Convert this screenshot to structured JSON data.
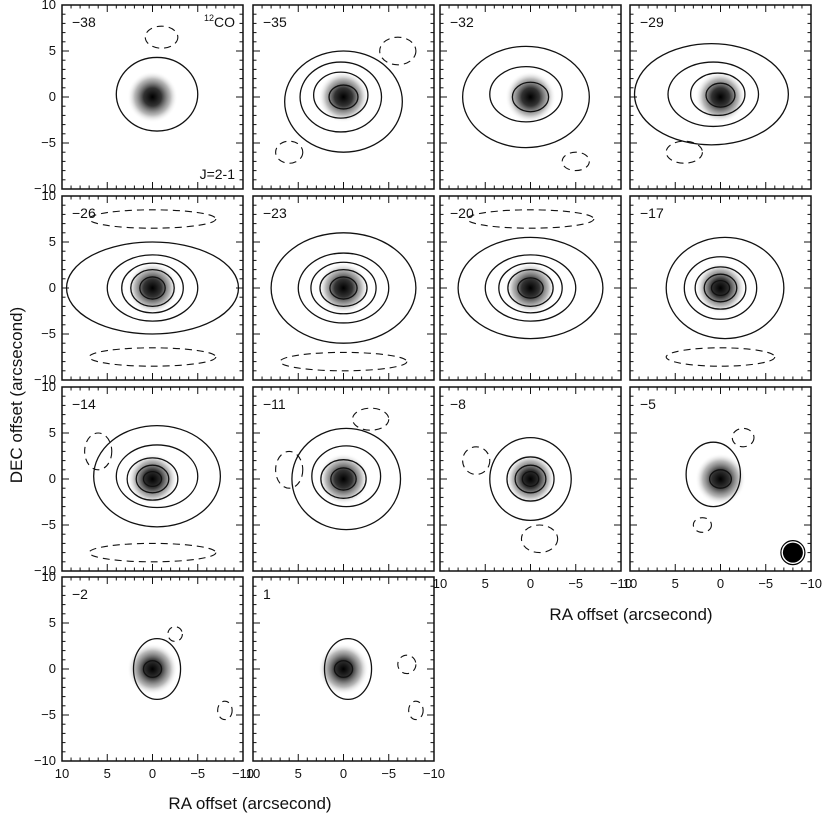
{
  "chart_data": {
    "type": "contour",
    "molecule": "12CO",
    "transition": "J=2-1",
    "xlabel": "RA offset (arcsecond)",
    "ylabel": "DEC offset (arcsecond)",
    "xlim": [
      10,
      -10
    ],
    "ylim": [
      -10,
      10
    ],
    "x_ticks": [
      10,
      5,
      0,
      -5,
      -10
    ],
    "y_ticks": [
      -10,
      -5,
      0,
      5,
      10
    ],
    "x_tick_labels": [
      "10",
      "5",
      "0",
      "−5",
      "−10"
    ],
    "y_tick_labels": [
      "−10",
      "−5",
      "0",
      "5",
      "10"
    ],
    "panels": [
      {
        "velocity_label": "−38",
        "peak": [
          0,
          0
        ],
        "levels": [
          {
            "rx": 4.5,
            "ry": 4,
            "dx": -0.5,
            "dy": 0.3
          }
        ],
        "neg": [
          {
            "x": -1,
            "y": 6.5,
            "rx": 1.8,
            "ry": 1.2
          }
        ]
      },
      {
        "velocity_label": "−35",
        "peak": [
          0,
          0
        ],
        "levels": [
          {
            "rx": 6.5,
            "ry": 5.5,
            "dx": 0,
            "dy": -0.5
          },
          {
            "rx": 4.5,
            "ry": 3.8,
            "dx": 0.3,
            "dy": 0
          },
          {
            "rx": 3,
            "ry": 2.5,
            "dx": 0.3,
            "dy": 0.2
          },
          {
            "rx": 1.6,
            "ry": 1.3,
            "dx": 0,
            "dy": 0
          }
        ],
        "neg": [
          {
            "x": -6,
            "y": 5,
            "rx": 2,
            "ry": 1.5
          },
          {
            "x": 6,
            "y": -6,
            "rx": 1.5,
            "ry": 1.2
          }
        ]
      },
      {
        "velocity_label": "−32",
        "peak": [
          0,
          0
        ],
        "levels": [
          {
            "rx": 7,
            "ry": 5.5,
            "dx": 0.5,
            "dy": 0
          },
          {
            "rx": 4,
            "ry": 3,
            "dx": 0.5,
            "dy": 0.3
          },
          {
            "rx": 2,
            "ry": 1.6,
            "dx": 0,
            "dy": 0
          }
        ],
        "neg": [
          {
            "x": -5,
            "y": -7,
            "rx": 1.5,
            "ry": 1
          }
        ]
      },
      {
        "velocity_label": "−29",
        "peak": [
          0,
          0
        ],
        "levels": [
          {
            "rx": 8.5,
            "ry": 5.5,
            "dx": 1,
            "dy": 0.3
          },
          {
            "rx": 5,
            "ry": 3.5,
            "dx": 0.8,
            "dy": 0.3
          },
          {
            "rx": 3,
            "ry": 2.3,
            "dx": 0.3,
            "dy": 0.3
          },
          {
            "rx": 1.6,
            "ry": 1.3,
            "dx": 0,
            "dy": 0.2
          }
        ],
        "neg": [
          {
            "x": 4,
            "y": -6,
            "rx": 2,
            "ry": 1.2
          }
        ]
      },
      {
        "velocity_label": "−26",
        "peak": [
          0,
          0
        ],
        "levels": [
          {
            "rx": 9.5,
            "ry": 5,
            "dx": 0,
            "dy": 0
          },
          {
            "rx": 5,
            "ry": 3.6,
            "dx": 0,
            "dy": 0
          },
          {
            "rx": 3.4,
            "ry": 2.7,
            "dx": 0,
            "dy": 0
          },
          {
            "rx": 2.4,
            "ry": 2,
            "dx": 0,
            "dy": 0
          },
          {
            "rx": 1.4,
            "ry": 1.2,
            "dx": 0,
            "dy": 0
          }
        ],
        "neg": [
          {
            "x": 0,
            "y": 7.5,
            "rx": 7,
            "ry": 1
          },
          {
            "x": 0,
            "y": -7.5,
            "rx": 7,
            "ry": 1
          }
        ]
      },
      {
        "velocity_label": "−23",
        "peak": [
          0,
          0
        ],
        "levels": [
          {
            "rx": 8,
            "ry": 6,
            "dx": 0,
            "dy": 0
          },
          {
            "rx": 5,
            "ry": 3.8,
            "dx": 0,
            "dy": 0
          },
          {
            "rx": 3.6,
            "ry": 2.8,
            "dx": 0,
            "dy": 0
          },
          {
            "rx": 2.6,
            "ry": 2,
            "dx": 0,
            "dy": 0
          },
          {
            "rx": 1.5,
            "ry": 1.2,
            "dx": 0,
            "dy": 0
          }
        ],
        "neg": [
          {
            "x": 0,
            "y": -8,
            "rx": 7,
            "ry": 1
          }
        ]
      },
      {
        "velocity_label": "−20",
        "peak": [
          0,
          0
        ],
        "levels": [
          {
            "rx": 8,
            "ry": 5.5,
            "dx": 0,
            "dy": 0
          },
          {
            "rx": 5,
            "ry": 3.6,
            "dx": 0,
            "dy": 0
          },
          {
            "rx": 3.5,
            "ry": 2.7,
            "dx": 0,
            "dy": 0
          },
          {
            "rx": 2.5,
            "ry": 2,
            "dx": 0,
            "dy": 0
          },
          {
            "rx": 1.4,
            "ry": 1.1,
            "dx": 0,
            "dy": 0
          }
        ],
        "neg": [
          {
            "x": 0,
            "y": 7.5,
            "rx": 7,
            "ry": 1
          }
        ]
      },
      {
        "velocity_label": "−17",
        "peak": [
          0,
          0
        ],
        "levels": [
          {
            "rx": 6.5,
            "ry": 5.5,
            "dx": -0.5,
            "dy": 0
          },
          {
            "rx": 4,
            "ry": 3.4,
            "dx": 0,
            "dy": 0
          },
          {
            "rx": 2.8,
            "ry": 2.3,
            "dx": 0,
            "dy": 0
          },
          {
            "rx": 1.8,
            "ry": 1.5,
            "dx": 0,
            "dy": 0
          },
          {
            "rx": 1,
            "ry": 0.8,
            "dx": 0,
            "dy": 0
          }
        ],
        "neg": [
          {
            "x": 0,
            "y": -7.5,
            "rx": 6,
            "ry": 1
          }
        ]
      },
      {
        "velocity_label": "−14",
        "peak": [
          0,
          0
        ],
        "levels": [
          {
            "rx": 7,
            "ry": 5.5,
            "dx": -0.5,
            "dy": 0.3
          },
          {
            "rx": 4.5,
            "ry": 3.4,
            "dx": -0.5,
            "dy": 0.3
          },
          {
            "rx": 2.8,
            "ry": 2.3,
            "dx": 0,
            "dy": 0
          },
          {
            "rx": 1.8,
            "ry": 1.5,
            "dx": 0,
            "dy": 0
          },
          {
            "rx": 1,
            "ry": 0.8,
            "dx": 0,
            "dy": 0
          }
        ],
        "neg": [
          {
            "x": 6,
            "y": 3,
            "rx": 1.5,
            "ry": 2
          },
          {
            "x": 0,
            "y": -8,
            "rx": 7,
            "ry": 1
          }
        ]
      },
      {
        "velocity_label": "−11",
        "peak": [
          0,
          0
        ],
        "levels": [
          {
            "rx": 6,
            "ry": 5.5,
            "dx": -0.3,
            "dy": 0
          },
          {
            "rx": 3.8,
            "ry": 3.3,
            "dx": -0.3,
            "dy": 0.3
          },
          {
            "rx": 2.5,
            "ry": 2.1,
            "dx": 0,
            "dy": 0
          },
          {
            "rx": 1.4,
            "ry": 1.2,
            "dx": 0,
            "dy": 0
          }
        ],
        "neg": [
          {
            "x": 6,
            "y": 1,
            "rx": 1.5,
            "ry": 2
          },
          {
            "x": -3,
            "y": 6.5,
            "rx": 2,
            "ry": 1.2
          }
        ]
      },
      {
        "velocity_label": "−8",
        "peak": [
          0,
          0
        ],
        "levels": [
          {
            "rx": 4.5,
            "ry": 4.5,
            "dx": 0,
            "dy": 0
          },
          {
            "rx": 2.6,
            "ry": 2.4,
            "dx": 0,
            "dy": 0
          },
          {
            "rx": 1.7,
            "ry": 1.5,
            "dx": 0,
            "dy": 0
          },
          {
            "rx": 0.9,
            "ry": 0.8,
            "dx": 0,
            "dy": 0
          }
        ],
        "neg": [
          {
            "x": 6,
            "y": 2,
            "rx": 1.5,
            "ry": 1.5
          },
          {
            "x": -1,
            "y": -6.5,
            "rx": 2,
            "ry": 1.5
          }
        ]
      },
      {
        "velocity_label": "−5",
        "peak": [
          0,
          0
        ],
        "levels": [
          {
            "rx": 3,
            "ry": 3.5,
            "dx": 0.8,
            "dy": 0.5
          },
          {
            "rx": 1.2,
            "ry": 1,
            "dx": 0,
            "dy": 0
          }
        ],
        "neg": [
          {
            "x": -2.5,
            "y": 4.5,
            "rx": 1.2,
            "ry": 1
          },
          {
            "x": 2,
            "y": -5,
            "rx": 1,
            "ry": 0.8
          }
        ]
      },
      {
        "velocity_label": "−2",
        "peak": [
          0,
          0
        ],
        "levels": [
          {
            "rx": 2.6,
            "ry": 3.3,
            "dx": -0.5,
            "dy": 0
          },
          {
            "rx": 1,
            "ry": 0.9,
            "dx": 0,
            "dy": 0
          }
        ],
        "neg": [
          {
            "x": -2.5,
            "y": 3.8,
            "rx": 0.8,
            "ry": 0.8
          },
          {
            "x": -8,
            "y": -4.5,
            "rx": 0.8,
            "ry": 1
          }
        ]
      },
      {
        "velocity_label": "1",
        "peak": [
          0,
          0
        ],
        "levels": [
          {
            "rx": 2.6,
            "ry": 3.3,
            "dx": -0.5,
            "dy": 0
          },
          {
            "rx": 1,
            "ry": 0.9,
            "dx": 0,
            "dy": 0
          }
        ],
        "neg": [
          {
            "x": -7,
            "y": 0.5,
            "rx": 1,
            "ry": 1
          },
          {
            "x": -8,
            "y": -4.5,
            "rx": 0.8,
            "ry": 1
          }
        ]
      }
    ]
  },
  "annotations": {
    "molecule_sup": "12",
    "molecule_base": "CO",
    "transition": "J=2-1"
  },
  "colors": {
    "frame": "#111111",
    "contour": "#111111",
    "beam": "#000000",
    "background": "#ffffff"
  }
}
